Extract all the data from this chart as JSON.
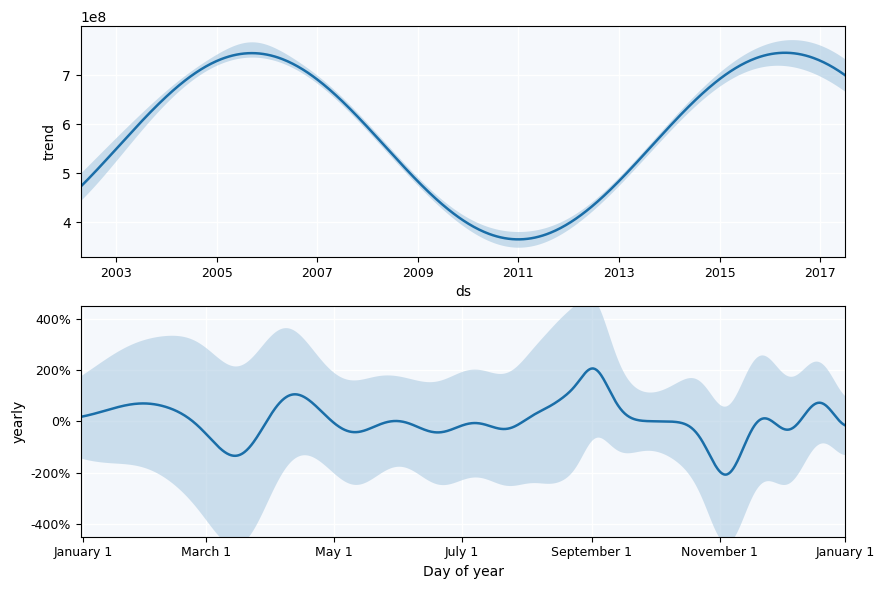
{
  "top": {
    "xlabel": "ds",
    "ylabel": "trend",
    "xlim_years": [
      2002.3,
      2017.5
    ],
    "ylim": [
      330000000.0,
      800000000.0
    ],
    "yticks": [
      400000000.0,
      500000000.0,
      600000000.0,
      700000000.0
    ],
    "xticks_years": [
      2003,
      2005,
      2007,
      2009,
      2011,
      2013,
      2015,
      2017
    ],
    "line_color": "#1a6ea8",
    "fill_color": "#a8c8e0",
    "bg_color": "#f5f8fc",
    "grid_color": "#ffffff"
  },
  "bottom": {
    "xlabel": "Day of year",
    "ylabel": "yearly",
    "ylim": [
      -4.5,
      4.5
    ],
    "ytick_vals": [
      -4,
      -2,
      0,
      2,
      4
    ],
    "ytick_labels": [
      "-400%",
      "-200%",
      "0%",
      "200%",
      "400%"
    ],
    "xtick_labels": [
      "January 1",
      "March 1",
      "May 1",
      "July 1",
      "September 1",
      "November 1",
      "January 1"
    ],
    "xtick_positions": [
      1,
      60,
      121,
      182,
      244,
      305,
      365
    ],
    "line_color": "#1a6ea8",
    "fill_color": "#a8c8e0",
    "bg_color": "#f5f8fc",
    "grid_color": "#ffffff"
  }
}
